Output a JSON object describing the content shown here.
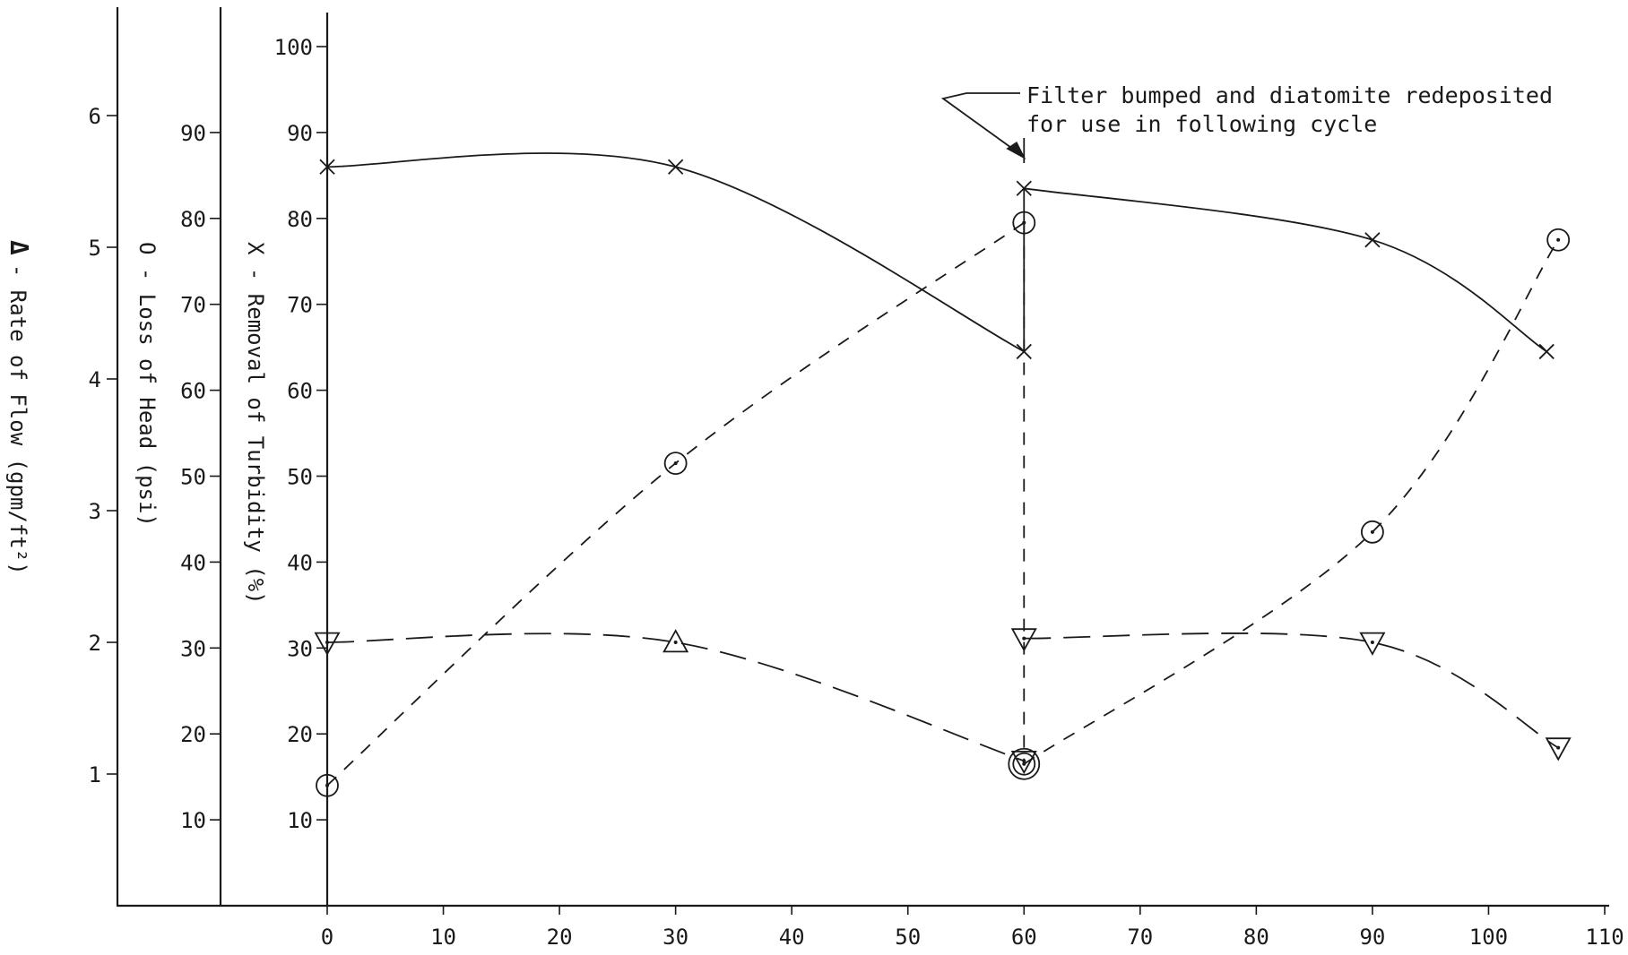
{
  "chart_data": {
    "type": "line",
    "x": {
      "ticks": [
        0,
        10,
        20,
        30,
        40,
        50,
        60,
        70,
        80,
        90,
        100,
        110
      ],
      "range": [
        0,
        110
      ]
    },
    "axes": {
      "removal": {
        "label": "X - Removal of Turbidity (%)",
        "ticks": [
          10,
          20,
          30,
          40,
          50,
          60,
          70,
          80,
          90,
          100
        ],
        "range": [
          0,
          100
        ]
      },
      "head": {
        "label": "O - Loss of Head (psi)",
        "ticks": [
          10,
          20,
          30,
          40,
          50,
          60,
          70,
          80,
          90
        ],
        "range": [
          0,
          100
        ]
      },
      "flow": {
        "label_symbol": "Δ",
        "label": "- Rate of Flow (gpm/ft²)",
        "ticks": [
          1,
          2,
          3,
          4,
          5,
          6
        ],
        "range": [
          0,
          6.9
        ]
      }
    },
    "series": [
      {
        "marker": "x",
        "axis": "removal",
        "line": "solid",
        "segments": [
          {
            "x": [
              0,
              30,
              60
            ],
            "y": [
              86,
              86,
              64.5
            ]
          },
          {
            "x": [
              60,
              90,
              105
            ],
            "y": [
              83.5,
              77.5,
              64.5
            ]
          }
        ]
      },
      {
        "marker": "circle",
        "axis": "head",
        "line": "short-dash",
        "segments": [
          {
            "x": [
              0,
              30,
              60
            ],
            "y": [
              14,
              51.5,
              79.5
            ]
          },
          {
            "x": [
              60,
              90,
              106
            ],
            "y": [
              16.5,
              43.5,
              77.5
            ]
          }
        ]
      },
      {
        "marker": "triangle",
        "axis": "flow",
        "line": "long-dash",
        "segments": [
          {
            "x": [
              0,
              30,
              60
            ],
            "y": [
              2.0,
              2.0,
              1.1
            ]
          },
          {
            "x": [
              60,
              90,
              106
            ],
            "y": [
              2.03,
              2.0,
              1.2
            ]
          }
        ]
      }
    ],
    "annotation": {
      "line1": "Filter bumped and diatomite redeposited",
      "line2": "for use in following cycle",
      "x": 60
    }
  }
}
